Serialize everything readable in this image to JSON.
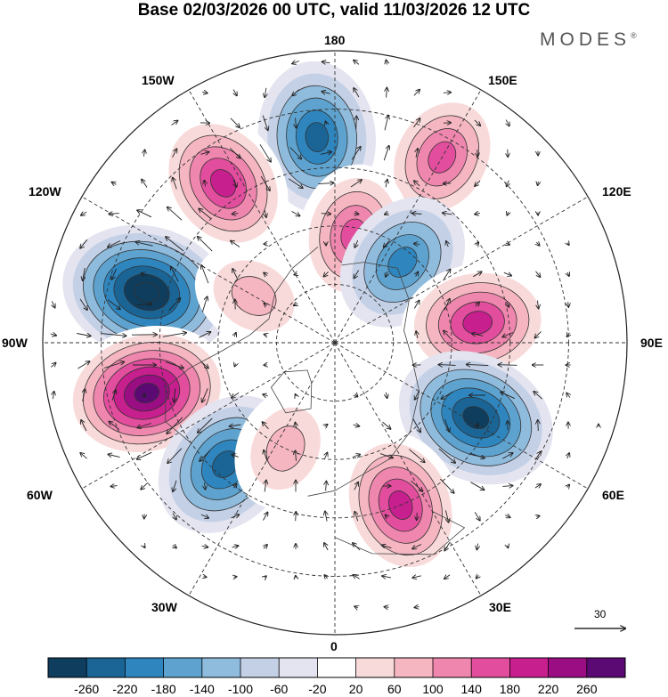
{
  "title": "Base 02/03/2026 00 UTC, valid 11/03/2026 12 UTC",
  "brand": "MODES",
  "brand_mark": "®",
  "longitude_labels": {
    "top": "180",
    "top_left": "150W",
    "top_right": "150E",
    "upper_left": "120W",
    "upper_right": "120E",
    "left": "90W",
    "right": "90E",
    "lower_left": "60W",
    "lower_right": "60E",
    "bottom_left": "30W",
    "bottom_right": "30E",
    "bottom": "0"
  },
  "reference_vector": {
    "value": "30"
  },
  "colorbar": {
    "colors": [
      "#0e3d5e",
      "#1a6596",
      "#2f86bf",
      "#5ea3cf",
      "#8fbbdd",
      "#c3d0e6",
      "#e4e4f0",
      "#ffffff",
      "#f9dada",
      "#f5b6c2",
      "#ef86ad",
      "#e24e9d",
      "#c71f8e",
      "#9a0d83",
      "#5c0a73"
    ],
    "labels": [
      "-260",
      "-220",
      "-180",
      "-140",
      "-100",
      "-60",
      "-20",
      "20",
      "60",
      "100",
      "140",
      "180",
      "220",
      "260"
    ]
  },
  "anomalies": [
    {
      "type": "neg",
      "value": -180,
      "lon": -175,
      "colat": 53
    },
    {
      "type": "pos",
      "value": 140,
      "lon": 150,
      "colat": 55
    },
    {
      "type": "pos",
      "value": 180,
      "lon": -145,
      "colat": 50
    },
    {
      "type": "pos",
      "value": 140,
      "lon": 170,
      "colat": 28
    },
    {
      "type": "neg",
      "value": -140,
      "lon": 140,
      "colat": 27
    },
    {
      "type": "neg",
      "value": -260,
      "lon": -105,
      "colat": 50
    },
    {
      "type": "pos",
      "value": 180,
      "lon": 98,
      "colat": 37
    },
    {
      "type": "pos",
      "value": 260,
      "lon": -75,
      "colat": 50
    },
    {
      "type": "neg",
      "value": -220,
      "lon": 62,
      "colat": 41
    },
    {
      "type": "neg",
      "value": -180,
      "lon": -42,
      "colat": 42
    },
    {
      "type": "pos",
      "value": 60,
      "lon": -25,
      "colat": 30
    },
    {
      "type": "pos",
      "value": 180,
      "lon": 22,
      "colat": 45
    },
    {
      "type": "pos",
      "value": 60,
      "lon": -120,
      "colat": 24
    }
  ]
}
